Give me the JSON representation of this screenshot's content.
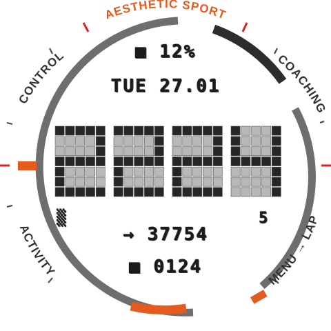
{
  "brand": "AESTHETIC SPORT",
  "buttons": {
    "control": "CONTROL",
    "coaching": "COACHING",
    "activity": "ACTIVITY",
    "menu_lap": "MENU → LAP"
  },
  "display": {
    "battery": "■ 12%",
    "date": "TUE 27.01",
    "time": [
      "2",
      "2",
      "2",
      "4"
    ],
    "left_indicator": "▒",
    "right_indicator": "5",
    "steps": "→ 37754",
    "calories": "■ 0124"
  },
  "colors": {
    "ring": "#6e6e6e",
    "ring_dark": "#2d2d2d",
    "accent": "#e55a1e",
    "tick_red": "#e01f1f",
    "cell_on": "#262626",
    "cell_off": "#b8b8b8"
  }
}
